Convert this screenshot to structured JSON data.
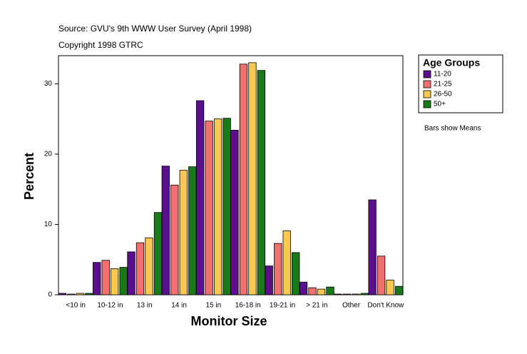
{
  "chart_data": {
    "type": "bar",
    "title": "Source: GVU's 9th WWW User Survey (April 1998)",
    "subtitle": "Copyright 1998 GTRC",
    "annotation": "Bars show Means",
    "x_label": "Monitor Size",
    "y_label": "Percent",
    "legend_title": "Age Groups",
    "categories": [
      "<10 in",
      "10-12 in",
      "13 in",
      "14 in",
      "15 in",
      "16-18 in",
      "19-21 in",
      "> 21 in",
      "Other",
      "Don't Know"
    ],
    "series": [
      {
        "name": "11-20",
        "color": "#5a0f8c",
        "values": [
          0.2,
          4.6,
          6.1,
          18.3,
          27.6,
          23.4,
          4.1,
          1.8,
          0.1,
          13.5
        ]
      },
      {
        "name": "21-25",
        "color": "#f07070",
        "values": [
          0.1,
          4.9,
          7.4,
          15.6,
          24.7,
          32.8,
          7.3,
          1.0,
          0.1,
          5.5
        ]
      },
      {
        "name": "26-50",
        "color": "#f8c850",
        "values": [
          0.2,
          3.7,
          8.1,
          17.7,
          25.0,
          33.0,
          9.1,
          0.8,
          0.1,
          2.1
        ]
      },
      {
        "name": "50+",
        "color": "#1a7a1a",
        "values": [
          0.2,
          3.9,
          11.7,
          18.2,
          25.1,
          31.9,
          6.0,
          1.1,
          0.2,
          1.2
        ]
      }
    ],
    "ylim": [
      0,
      34
    ],
    "yticks": [
      0,
      10,
      20,
      30
    ],
    "grid": false,
    "legend": "right"
  }
}
